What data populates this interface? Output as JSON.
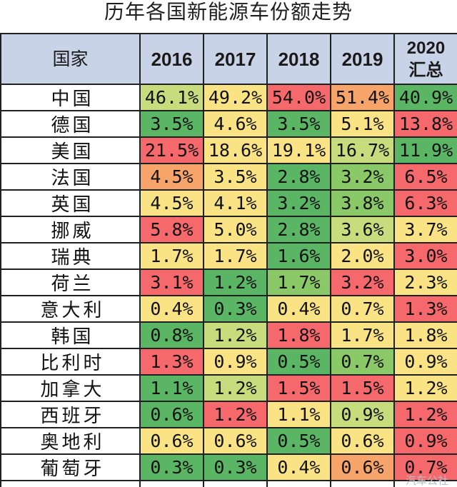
{
  "title": "历年各国新能源车份额走势",
  "headers": [
    "国家",
    "2016",
    "2017",
    "2018",
    "2019",
    "2020\n汇总"
  ],
  "rows": [
    {
      "country": "中国",
      "values": [
        "46.1%",
        "49.2%",
        "54.0%",
        "51.4%",
        "40.9%"
      ],
      "colors": [
        "#c7dc7d",
        "#f9e384",
        "#f5686b",
        "#f7a46a",
        "#5ab664"
      ]
    },
    {
      "country": "德国",
      "values": [
        "3.5%",
        "4.6%",
        "3.5%",
        "5.1%",
        "13.8%"
      ],
      "colors": [
        "#5ab664",
        "#f9e384",
        "#5ab664",
        "#f9e384",
        "#f5686b"
      ]
    },
    {
      "country": "美国",
      "values": [
        "21.5%",
        "18.6%",
        "19.1%",
        "16.7%",
        "11.9%"
      ],
      "colors": [
        "#f5686b",
        "#f9e384",
        "#f9e384",
        "#c7dc7d",
        "#5ab664"
      ]
    },
    {
      "country": "法国",
      "values": [
        "4.5%",
        "3.5%",
        "2.8%",
        "3.2%",
        "6.5%"
      ],
      "colors": [
        "#f7a46a",
        "#f9e384",
        "#5ab664",
        "#8bc868",
        "#f5686b"
      ]
    },
    {
      "country": "英国",
      "values": [
        "4.5%",
        "4.1%",
        "3.2%",
        "3.8%",
        "6.3%"
      ],
      "colors": [
        "#f9e384",
        "#f9e384",
        "#5ab664",
        "#8bc868",
        "#f5686b"
      ]
    },
    {
      "country": "挪威",
      "values": [
        "5.8%",
        "5.0%",
        "2.8%",
        "3.6%",
        "3.7%"
      ],
      "colors": [
        "#f5686b",
        "#f9e384",
        "#5ab664",
        "#c7dc7d",
        "#f9e384"
      ]
    },
    {
      "country": "瑞典",
      "values": [
        "1.7%",
        "1.7%",
        "1.6%",
        "2.0%",
        "3.0%"
      ],
      "colors": [
        "#f9e384",
        "#f9e384",
        "#5ab664",
        "#f9e384",
        "#f5686b"
      ]
    },
    {
      "country": "荷兰",
      "values": [
        "3.1%",
        "1.2%",
        "1.7%",
        "3.2%",
        "2.3%"
      ],
      "colors": [
        "#f5686b",
        "#5ab664",
        "#8bc868",
        "#f5686b",
        "#f9e384"
      ]
    },
    {
      "country": "意大利",
      "values": [
        "0.4%",
        "0.3%",
        "0.4%",
        "0.7%",
        "1.3%"
      ],
      "colors": [
        "#f9e384",
        "#5ab664",
        "#f9e384",
        "#f9e384",
        "#f5686b"
      ]
    },
    {
      "country": "韩国",
      "values": [
        "0.8%",
        "1.2%",
        "1.8%",
        "1.7%",
        "1.8%"
      ],
      "colors": [
        "#5ab664",
        "#c7dc7d",
        "#f5686b",
        "#f9e384",
        "#f9e384"
      ]
    },
    {
      "country": "比利时",
      "values": [
        "1.3%",
        "0.9%",
        "0.5%",
        "0.7%",
        "0.9%"
      ],
      "colors": [
        "#f5686b",
        "#f9e384",
        "#5ab664",
        "#8bc868",
        "#f9e384"
      ]
    },
    {
      "country": "加拿大",
      "values": [
        "1.1%",
        "1.2%",
        "1.5%",
        "1.5%",
        "1.2%"
      ],
      "colors": [
        "#5ab664",
        "#c7dc7d",
        "#f5686b",
        "#f5686b",
        "#f9e384"
      ]
    },
    {
      "country": "西班牙",
      "values": [
        "0.6%",
        "1.2%",
        "1.1%",
        "0.9%",
        "1.2%"
      ],
      "colors": [
        "#5ab664",
        "#f5686b",
        "#f9e384",
        "#c7dc7d",
        "#f5686b"
      ]
    },
    {
      "country": "奥地利",
      "values": [
        "0.6%",
        "0.6%",
        "0.5%",
        "0.6%",
        "0.9%"
      ],
      "colors": [
        "#f9e384",
        "#f9e384",
        "#5ab664",
        "#f9e384",
        "#f5686b"
      ]
    },
    {
      "country": "葡萄牙",
      "values": [
        "0.3%",
        "0.3%",
        "0.4%",
        "0.6%",
        "0.7%"
      ],
      "colors": [
        "#5ab664",
        "#5ab664",
        "#f9e384",
        "#f7a46a",
        "#f5686b"
      ]
    }
  ],
  "watermark": "汽车公社"
}
